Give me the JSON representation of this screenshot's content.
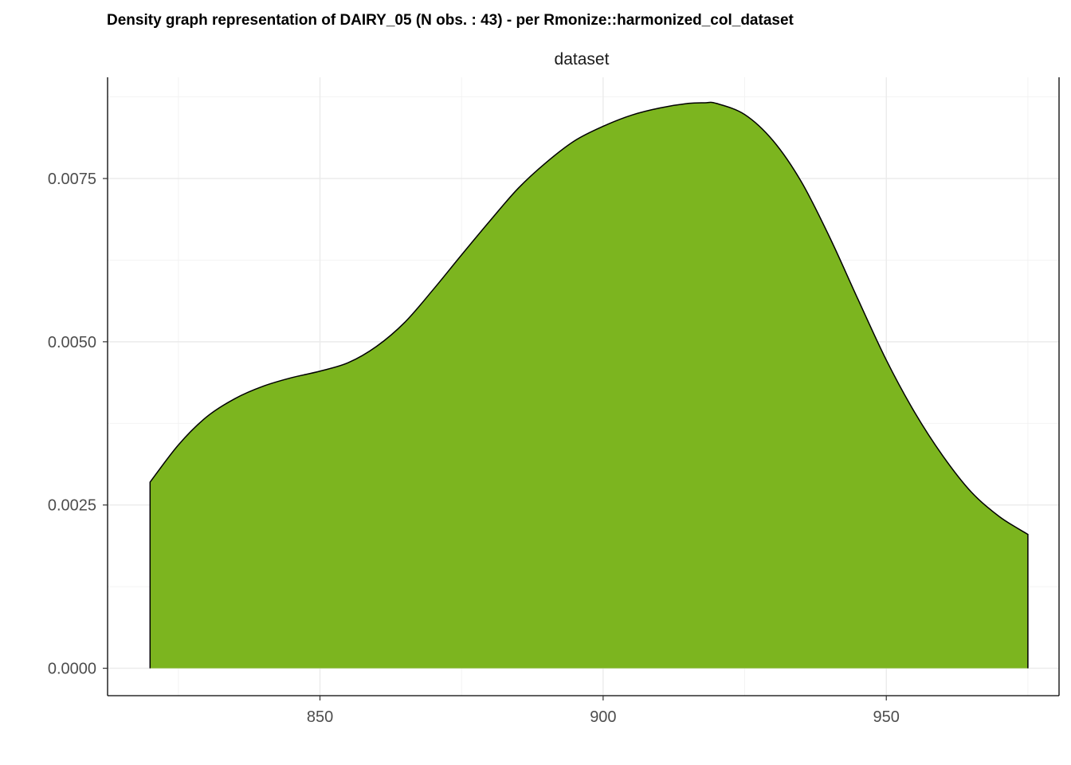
{
  "chart_data": {
    "type": "area",
    "title": "Density graph representation of DAIRY_05 (N obs. : 43) - per Rmonize::harmonized_col_dataset",
    "facet_label": "dataset",
    "xlabel": "",
    "ylabel": "",
    "xlim": [
      812.5,
      980.5
    ],
    "ylim": [
      -0.00042,
      0.00905
    ],
    "x_major_ticks": [
      850,
      900,
      950
    ],
    "x_tick_labels": [
      "850",
      "900",
      "950"
    ],
    "x_minor_ticks": [
      825,
      875,
      925,
      975
    ],
    "y_major_ticks": [
      0,
      0.0025,
      0.005,
      0.0075
    ],
    "y_tick_labels": [
      "0.0000",
      "0.0025",
      "0.0050",
      "0.0075"
    ],
    "y_minor_ticks": [
      0.00125,
      0.00375,
      0.00625,
      0.00875
    ],
    "grid": true,
    "legend": "none",
    "fill_color": "#7cb51f",
    "line_color": "#000000",
    "series": [
      {
        "x": [
          820,
          825,
          830,
          835,
          840,
          845,
          850,
          855,
          860,
          865,
          870,
          875,
          880,
          885,
          890,
          895,
          900,
          905,
          910,
          915,
          918,
          920,
          925,
          930,
          935,
          940,
          945,
          950,
          955,
          960,
          965,
          970,
          975
        ],
        "values": [
          0.00285,
          0.00342,
          0.00385,
          0.00413,
          0.00432,
          0.00445,
          0.00455,
          0.00468,
          0.00493,
          0.0053,
          0.0058,
          0.00633,
          0.00685,
          0.00735,
          0.00775,
          0.00808,
          0.0083,
          0.00847,
          0.00858,
          0.00865,
          0.00866,
          0.00865,
          0.00848,
          0.00808,
          0.00745,
          0.0066,
          0.00565,
          0.00472,
          0.00392,
          0.00325,
          0.0027,
          0.00232,
          0.00205
        ]
      }
    ]
  }
}
